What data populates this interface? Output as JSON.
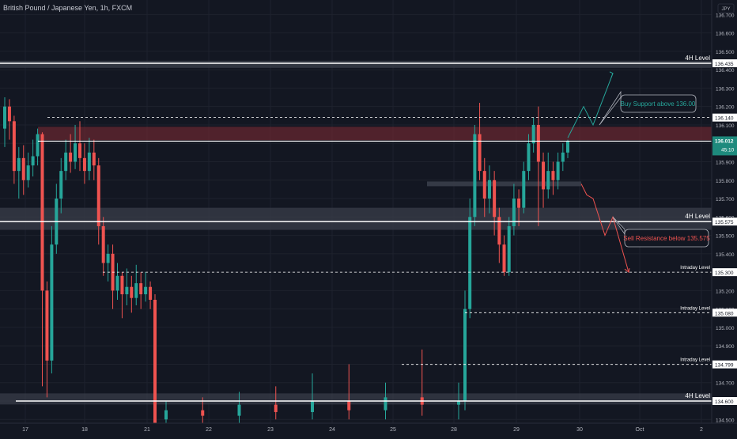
{
  "header": {
    "title": "British Pound / Japanese Yen, 1h, FXCM"
  },
  "currency_label": "JPY",
  "countdown": "45:10",
  "colors": {
    "background": "#131722",
    "up": "#26a69a",
    "down": "#ef5350",
    "price_tag": "#1e8a7d",
    "text": "#b2b5be",
    "level_line": "#ffffff",
    "zone_gray": "#3a3e4a",
    "zone_red": "#7a2a33"
  },
  "chart_data": {
    "type": "candlestick",
    "y_axis": {
      "min": 134.45,
      "max": 136.8,
      "ticks": [
        "136.700",
        "136.600",
        "136.500",
        "136.400",
        "136.300",
        "136.200",
        "136.100",
        "136.000",
        "135.900",
        "135.800",
        "135.700",
        "135.600",
        "135.500",
        "135.400",
        "135.300",
        "135.200",
        "135.100",
        "135.000",
        "134.900",
        "134.800",
        "134.700",
        "134.600",
        "134.500"
      ]
    },
    "x_axis": {
      "labels": [
        {
          "t": "17",
          "day": 0
        },
        {
          "t": "18",
          "day": 1
        },
        {
          "t": "21",
          "day": 2
        },
        {
          "t": "22",
          "day": 3
        },
        {
          "t": "23",
          "day": 4
        },
        {
          "t": "24",
          "day": 5
        },
        {
          "t": "25",
          "day": 6
        },
        {
          "t": "28",
          "day": 7
        },
        {
          "t": "29",
          "day": 8
        },
        {
          "t": "30",
          "day": 9
        },
        {
          "t": "Oct",
          "day": 10
        },
        {
          "t": "2",
          "day": 11
        }
      ]
    },
    "current_price": "136.012",
    "levels": [
      {
        "price": 136.435,
        "label": "4H Level",
        "style": "solid",
        "value_tag": "136.435"
      },
      {
        "price": 136.14,
        "label": "",
        "style": "dashed",
        "value_tag": "136.140"
      },
      {
        "price": 136.012,
        "label": "",
        "style": "solid",
        "value_tag": ""
      },
      {
        "price": 135.575,
        "label": "4H Level",
        "style": "solid",
        "value_tag": "135.575"
      },
      {
        "price": 135.3,
        "label": "Intraday Level",
        "style": "dashed",
        "value_tag": "135.300"
      },
      {
        "price": 135.08,
        "label": "Intraday Level",
        "style": "dashed",
        "value_tag": "135.080"
      },
      {
        "price": 134.799,
        "label": "Intraday Level",
        "style": "dashed",
        "value_tag": "134.799"
      },
      {
        "price": 134.6,
        "label": "4H Level",
        "style": "solid",
        "value_tag": "134.600"
      }
    ],
    "annotations": [
      {
        "text": "Buy Support above 136.00",
        "color": "#26a69a"
      },
      {
        "text": "Sell Resistance below 135.575",
        "color": "#ef5350"
      }
    ],
    "candles": [
      [
        136.08,
        136.2,
        136.25,
        135.98
      ],
      [
        136.2,
        136.12,
        136.24,
        136.02
      ],
      [
        136.12,
        135.85,
        136.15,
        135.78
      ],
      [
        135.85,
        135.92,
        135.98,
        135.7
      ],
      [
        135.92,
        135.8,
        135.99,
        135.72
      ],
      [
        135.8,
        135.88,
        135.95,
        135.76
      ],
      [
        135.88,
        135.93,
        136.02,
        135.82
      ],
      [
        135.93,
        136.05,
        136.08,
        135.88
      ],
      [
        136.05,
        135.2,
        136.06,
        134.68
      ],
      [
        135.2,
        134.82,
        135.25,
        134.62
      ],
      [
        134.82,
        135.45,
        135.55,
        134.75
      ],
      [
        135.45,
        135.7,
        135.78,
        135.4
      ],
      [
        135.7,
        135.85,
        135.92,
        135.62
      ],
      [
        135.85,
        135.95,
        136.02,
        135.8
      ],
      [
        135.95,
        135.9,
        136.05,
        135.84
      ],
      [
        135.9,
        136.0,
        136.1,
        135.86
      ],
      [
        136.0,
        135.92,
        136.12,
        135.85
      ],
      [
        135.92,
        135.85,
        136.0,
        135.78
      ],
      [
        135.85,
        135.95,
        136.03,
        135.8
      ],
      [
        135.95,
        135.88,
        136.02,
        135.8
      ],
      [
        135.88,
        135.55,
        135.92,
        135.45
      ],
      [
        135.55,
        135.35,
        135.6,
        135.28
      ],
      [
        135.35,
        135.4,
        135.45,
        135.25
      ],
      [
        135.4,
        135.2,
        135.45,
        135.1
      ],
      [
        135.2,
        135.28,
        135.35,
        135.15
      ],
      [
        135.28,
        135.18,
        135.3,
        135.05
      ],
      [
        135.18,
        135.22,
        135.32,
        135.12
      ],
      [
        135.22,
        135.16,
        135.28,
        135.08
      ],
      [
        135.16,
        135.24,
        135.34,
        135.12
      ],
      [
        135.24,
        135.18,
        135.3,
        135.1
      ],
      [
        135.18,
        135.22,
        135.3,
        135.14
      ],
      [
        135.22,
        135.15,
        135.25,
        135.1
      ],
      [
        135.15,
        134.45,
        135.18,
        134.4
      ],
      [
        134.5,
        134.55,
        134.6,
        134.45
      ],
      [
        134.55,
        134.52,
        134.62,
        134.47
      ],
      [
        134.52,
        134.58,
        134.65,
        134.48
      ],
      [
        134.58,
        134.54,
        134.68,
        134.5
      ],
      [
        134.54,
        134.6,
        134.75,
        134.5
      ],
      [
        134.6,
        134.55,
        134.8,
        134.5
      ],
      [
        134.55,
        134.62,
        134.7,
        134.5
      ],
      [
        134.62,
        134.58,
        134.88,
        134.52
      ],
      [
        134.58,
        134.6,
        134.7,
        134.5
      ],
      [
        134.6,
        135.1,
        135.2,
        134.55
      ],
      [
        135.1,
        135.6,
        135.7,
        135.05
      ],
      [
        135.6,
        136.05,
        136.1,
        135.55
      ],
      [
        136.05,
        135.85,
        136.22,
        135.8
      ],
      [
        135.85,
        135.7,
        135.92,
        135.6
      ],
      [
        135.7,
        135.8,
        135.88,
        135.62
      ],
      [
        135.8,
        135.6,
        135.85,
        135.5
      ],
      [
        135.6,
        135.45,
        135.65,
        135.35
      ],
      [
        135.45,
        135.3,
        135.5,
        135.28
      ],
      [
        135.3,
        135.55,
        135.6,
        135.28
      ],
      [
        135.55,
        135.7,
        135.78,
        135.5
      ],
      [
        135.7,
        135.65,
        135.75,
        135.55
      ],
      [
        135.65,
        135.85,
        135.9,
        135.62
      ],
      [
        135.85,
        136.0,
        136.05,
        135.8
      ],
      [
        136.0,
        136.1,
        136.14,
        135.95
      ],
      [
        136.1,
        135.9,
        136.2,
        135.55
      ],
      [
        135.9,
        135.75,
        135.95,
        135.65
      ],
      [
        135.75,
        135.85,
        135.95,
        135.7
      ],
      [
        135.85,
        135.8,
        135.9,
        135.72
      ],
      [
        135.8,
        135.9,
        135.95,
        135.75
      ],
      [
        135.9,
        135.95,
        136.0,
        135.85
      ],
      [
        135.95,
        136.012,
        136.02,
        135.92
      ]
    ]
  }
}
